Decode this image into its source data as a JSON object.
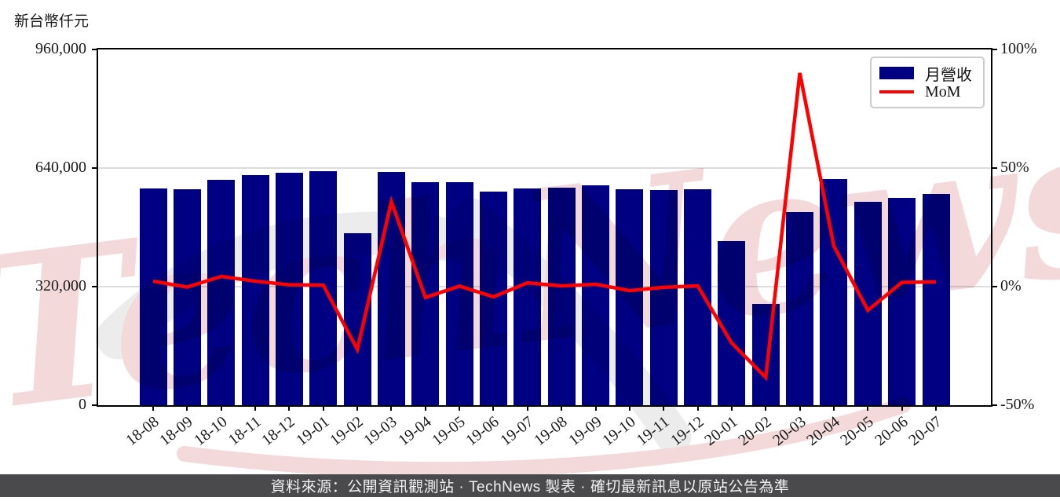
{
  "header": {
    "unit_label": "新台幣仟元"
  },
  "chart_data": {
    "type": "bar",
    "categories": [
      "18-08",
      "18-09",
      "18-10",
      "18-11",
      "18-12",
      "19-01",
      "19-02",
      "19-03",
      "19-04",
      "19-05",
      "19-06",
      "19-07",
      "19-08",
      "19-09",
      "19-10",
      "19-11",
      "19-12",
      "20-01",
      "20-02",
      "20-03",
      "20-04",
      "20-05",
      "20-06",
      "20-07"
    ],
    "series": [
      {
        "name": "月營收",
        "type": "bar",
        "color": "#000082",
        "values": [
          584000,
          583000,
          608000,
          622000,
          627000,
          631000,
          464000,
          630000,
          601000,
          602000,
          576000,
          585000,
          587000,
          593000,
          583000,
          581000,
          583000,
          444000,
          274000,
          521000,
          610000,
          549000,
          559000,
          570000
        ]
      },
      {
        "name": "MoM",
        "type": "line",
        "color": "#fe0000",
        "values": [
          2.3,
          -0.2,
          4.3,
          2.3,
          0.8,
          0.6,
          -26.5,
          35.8,
          -4.6,
          0.2,
          -4.3,
          1.6,
          0.3,
          1.0,
          -1.7,
          -0.3,
          0.3,
          -23.8,
          -38.3,
          90.1,
          17.1,
          -10.0,
          1.8,
          2.0
        ]
      }
    ],
    "title": "",
    "xlabel": "",
    "ylabel": "新台幣仟元",
    "left_axis": {
      "max": 960000,
      "min": 0,
      "tick_values": [
        960000,
        640000,
        320000,
        0
      ],
      "tick_labels": [
        "960,000",
        "640,000",
        "320,000",
        "0"
      ]
    },
    "right_axis": {
      "max": 100,
      "min": -50,
      "tick_values": [
        100,
        50,
        0,
        -50
      ],
      "tick_labels": [
        "100%",
        "50%",
        "0%",
        "-50%"
      ]
    },
    "grid": "horizontal-on",
    "legend_position": "top-right"
  },
  "legend": {
    "bar_label": "月營收",
    "line_label": "MoM"
  },
  "watermark": {
    "text": "TechNews",
    "pink": "#f3d9d9",
    "gray": "#ececec"
  },
  "footer": {
    "text": "資料來源：公開資訊觀測站 · TechNews 製表 · 確切最新訊息以原站公告為準",
    "background": "#4a4a4c"
  }
}
